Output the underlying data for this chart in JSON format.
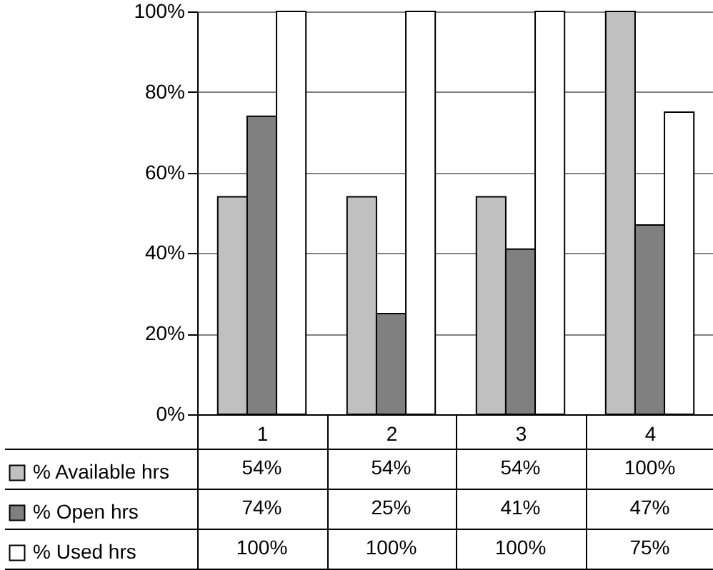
{
  "chart_data": {
    "type": "bar",
    "categories": [
      "1",
      "2",
      "3",
      "4"
    ],
    "series": [
      {
        "name": "% Available hrs",
        "color": "#c0c0c0",
        "values": [
          54,
          54,
          54,
          100
        ],
        "value_labels": [
          "54%",
          "54%",
          "54%",
          "100%"
        ]
      },
      {
        "name": "% Open hrs",
        "color": "#808080",
        "values": [
          74,
          25,
          41,
          47
        ],
        "value_labels": [
          "74%",
          "25%",
          "41%",
          "47%"
        ]
      },
      {
        "name": "% Used hrs",
        "color": "#ffffff",
        "values": [
          100,
          100,
          100,
          75
        ],
        "value_labels": [
          "100%",
          "100%",
          "100%",
          "75%"
        ]
      }
    ],
    "ylim": [
      0,
      100
    ],
    "yticks": [
      {
        "value": 0,
        "label": "0%"
      },
      {
        "value": 20,
        "label": "20%"
      },
      {
        "value": 40,
        "label": "40%"
      },
      {
        "value": 60,
        "label": "60%"
      },
      {
        "value": 80,
        "label": "80%"
      },
      {
        "value": 100,
        "label": "100%"
      }
    ],
    "grid": "y",
    "legend": "bottom"
  }
}
